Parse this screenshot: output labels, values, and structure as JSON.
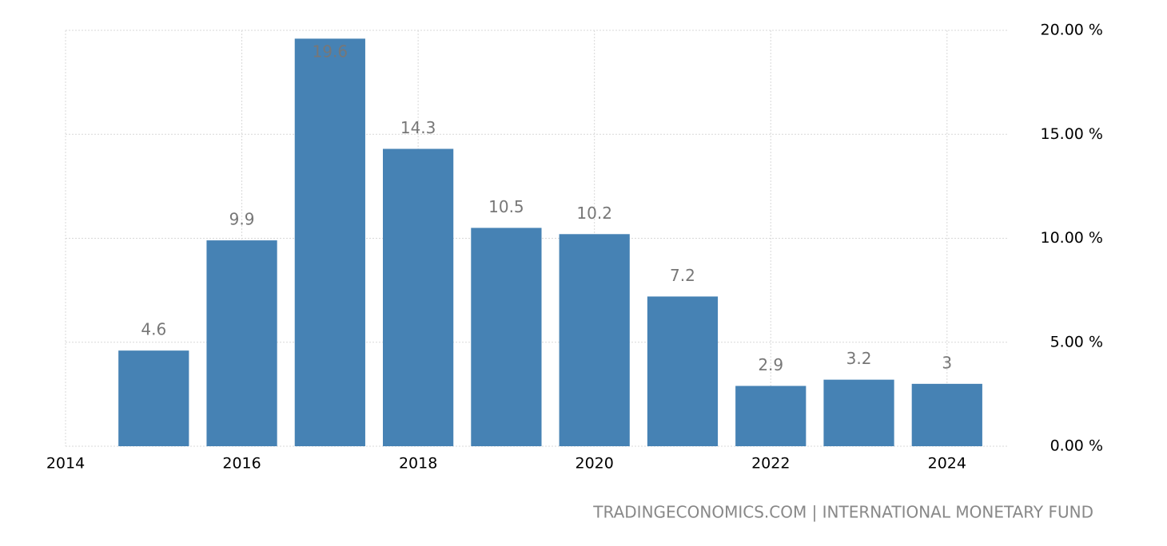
{
  "chart_data": {
    "type": "bar",
    "x": [
      2015,
      2016,
      2017,
      2018,
      2019,
      2020,
      2021,
      2022,
      2023,
      2024
    ],
    "values": [
      4.6,
      9.9,
      19.6,
      14.3,
      10.5,
      10.2,
      7.2,
      2.9,
      3.2,
      3
    ],
    "color": "#4682b4",
    "xlim": [
      2014,
      2024.7
    ],
    "xticks": [
      2014,
      2016,
      2018,
      2020,
      2022,
      2024
    ],
    "ylim": [
      0,
      20
    ],
    "yticks": [
      {
        "value": 0,
        "label": "0.00 %"
      },
      {
        "value": 5,
        "label": "5.00 %"
      },
      {
        "value": 10,
        "label": "10.00 %"
      },
      {
        "value": 15,
        "label": "15.00 %"
      },
      {
        "value": 20,
        "label": "20.00 %"
      }
    ],
    "grid": true,
    "source": "TRADINGECONOMICS.COM | INTERNATIONAL MONETARY FUND"
  }
}
